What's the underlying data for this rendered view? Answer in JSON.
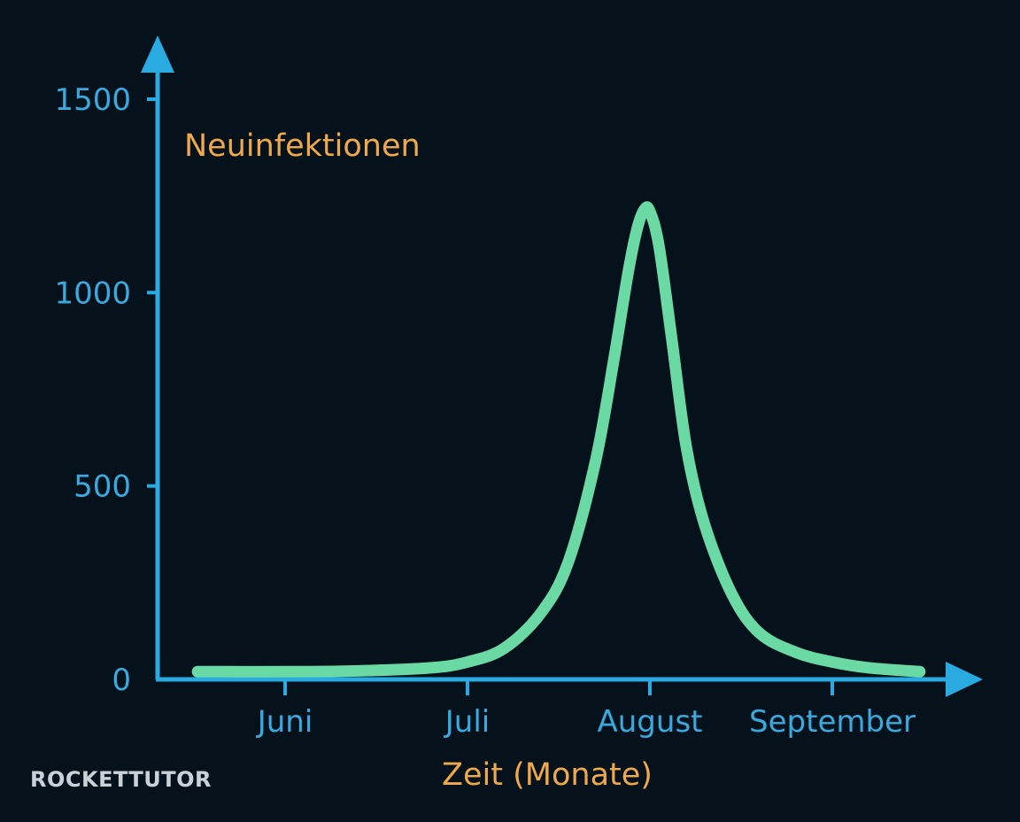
{
  "colors": {
    "background": "#05121c",
    "axis": "#29abe2",
    "tick_label": "#3aa9de",
    "axis_title": "#f0a94a",
    "curve": "#6ad9a4",
    "logo": "#c9d2d8"
  },
  "logo": {
    "text": "ROCKETTUTOR"
  },
  "chart_data": {
    "type": "line",
    "ylabel": "Neuinfektionen",
    "xlabel": "Zeit (Monate)",
    "ylim": [
      0,
      1500
    ],
    "yticks": [
      0,
      500,
      1000,
      1500
    ],
    "xlim": [
      -0.5,
      3.5
    ],
    "xticks": [
      {
        "x": 0,
        "label": "Juni"
      },
      {
        "x": 1,
        "label": "Juli"
      },
      {
        "x": 2,
        "label": "August"
      },
      {
        "x": 3,
        "label": "September"
      }
    ],
    "grid": false,
    "series": [
      {
        "x": [
          -0.48,
          0.0,
          0.4,
          0.8,
          1.0,
          1.2,
          1.4,
          1.55,
          1.7,
          1.8,
          1.88,
          1.93,
          1.97,
          2.0,
          2.05,
          2.12,
          2.2,
          2.3,
          2.45,
          2.6,
          2.8,
          3.0,
          3.2,
          3.48
        ],
        "y": [
          20,
          20,
          22,
          30,
          45,
          80,
          170,
          300,
          560,
          820,
          1050,
          1165,
          1215,
          1210,
          1120,
          880,
          600,
          400,
          220,
          120,
          70,
          45,
          30,
          20
        ]
      }
    ]
  }
}
